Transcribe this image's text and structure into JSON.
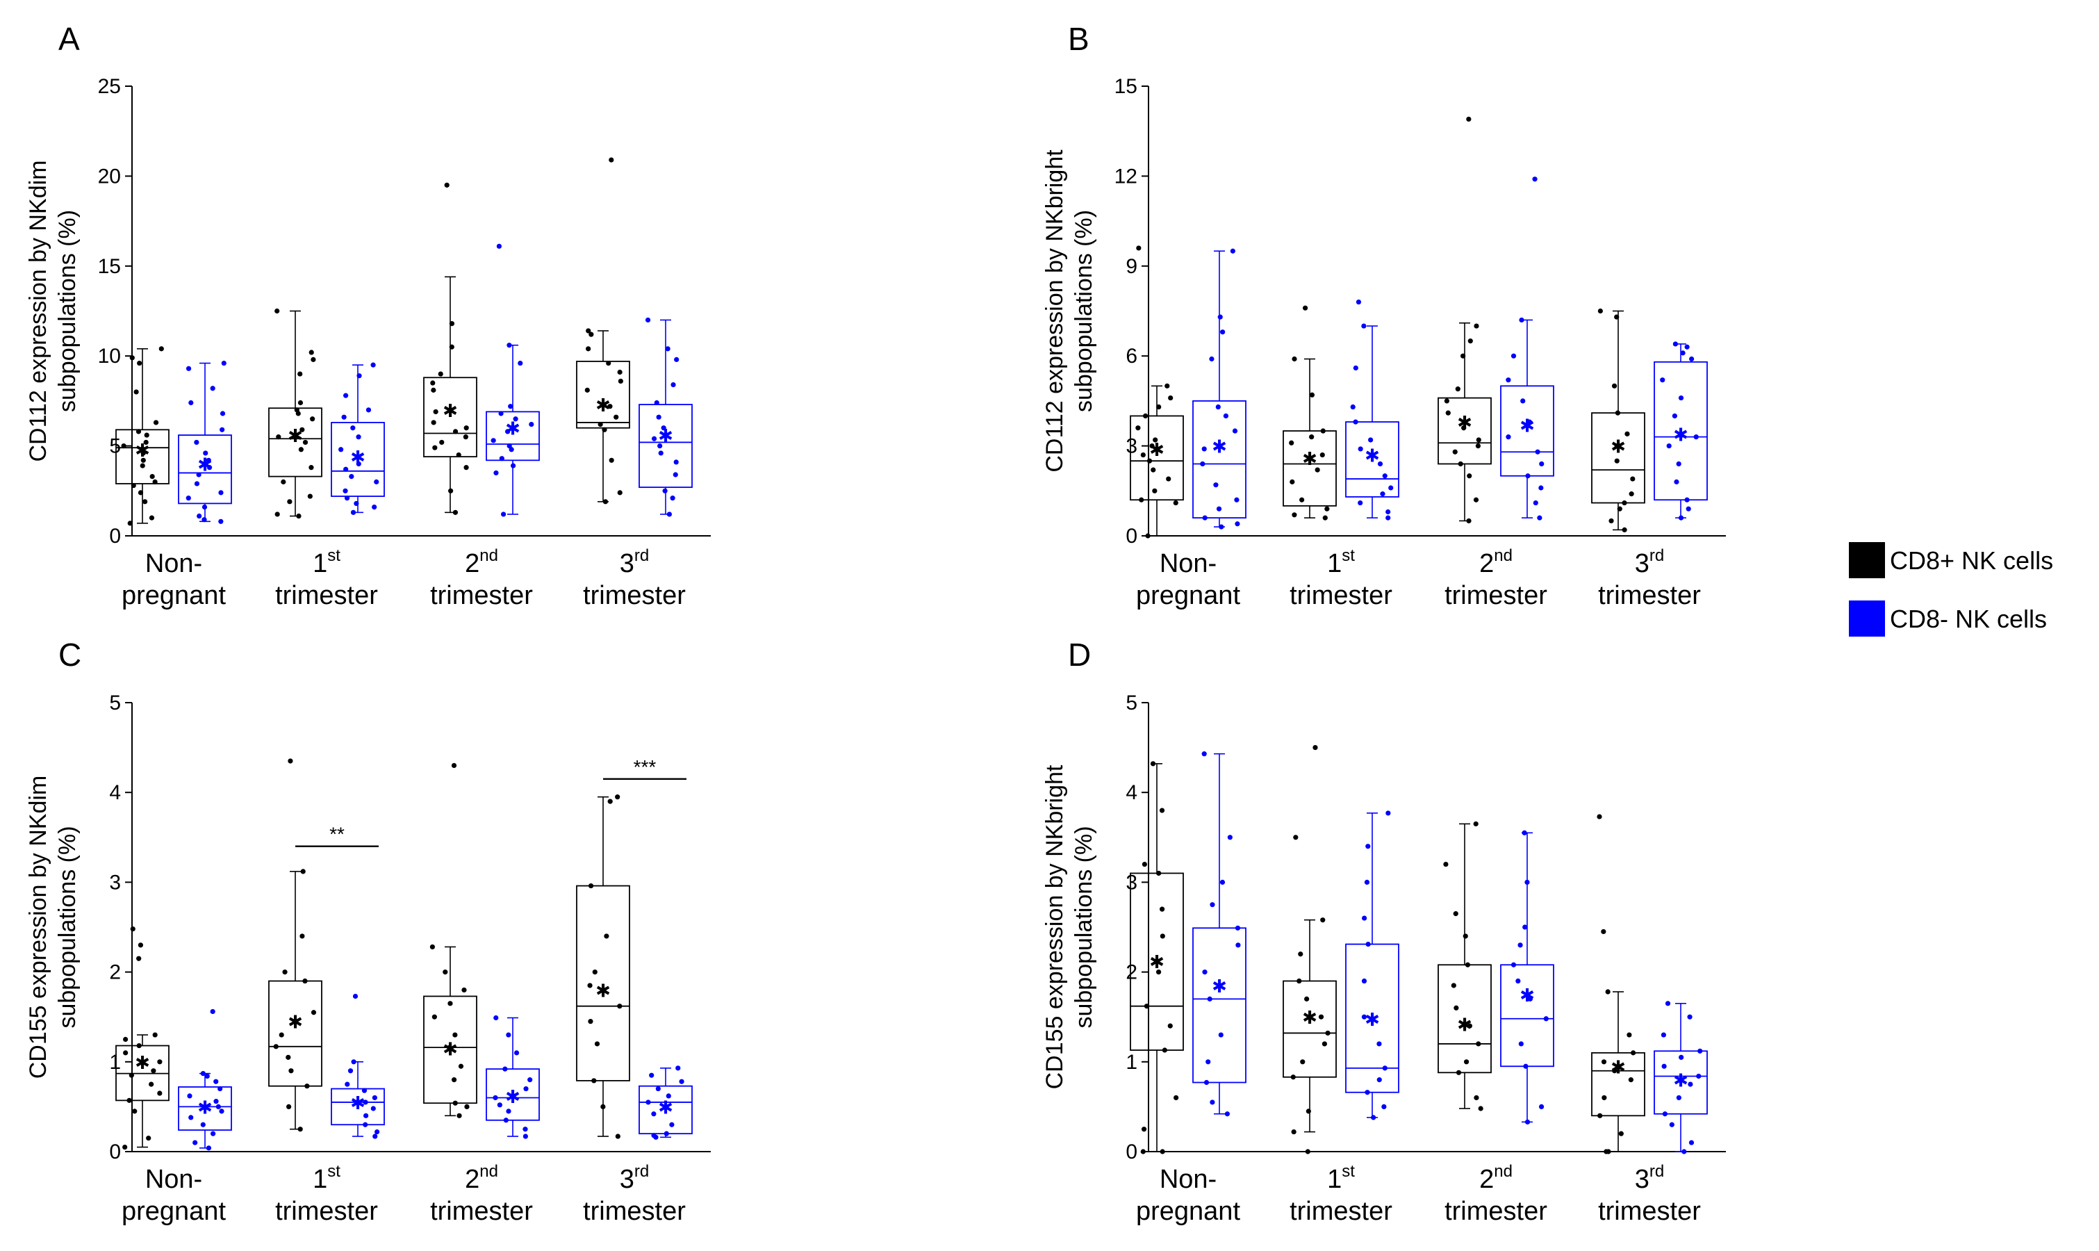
{
  "legend": {
    "items": [
      {
        "label": "CD8+ NK cells",
        "color": "#000000"
      },
      {
        "label": "CD8- NK cells",
        "color": "#0000ff"
      }
    ]
  },
  "categories": [
    {
      "line1": "Non-",
      "line2": "pregnant",
      "sup": ""
    },
    {
      "line1": "1",
      "line2": "trimester",
      "sup": "st"
    },
    {
      "line1": "2",
      "line2": "trimester",
      "sup": "nd"
    },
    {
      "line1": "3",
      "line2": "trimester",
      "sup": "rd"
    }
  ],
  "chart_data": [
    {
      "type": "box",
      "panel": "A",
      "ylabel_line1": "CD112 expression by NKdim",
      "ylabel_line2": "subpopulations (%)",
      "ylim": [
        0,
        25
      ],
      "yticks": [
        0,
        5,
        10,
        15,
        20,
        25
      ],
      "groups": [
        {
          "cd8pos": {
            "min": 0.7,
            "q1": 2.9,
            "median": 4.9,
            "q3": 5.9,
            "max": 10.4,
            "mean": 4.8,
            "points": [
              0.7,
              1.0,
              1.9,
              2.4,
              2.8,
              3.0,
              3.3,
              3.9,
              4.2,
              4.6,
              5.0,
              5.2,
              5.6,
              5.8,
              6.3,
              8.0,
              9.6,
              9.9,
              10.4
            ]
          },
          "cd8neg": {
            "min": 0.8,
            "q1": 1.8,
            "median": 3.5,
            "q3": 5.6,
            "max": 9.6,
            "mean": 4.0,
            "points": [
              0.8,
              0.9,
              1.1,
              1.6,
              2.1,
              2.4,
              2.9,
              3.4,
              3.8,
              4.2,
              4.6,
              5.2,
              5.9,
              6.8,
              7.4,
              8.2,
              9.3,
              9.6
            ]
          },
          "sig": ""
        },
        {
          "cd8pos": {
            "min": 1.1,
            "q1": 3.3,
            "median": 5.4,
            "q3": 7.1,
            "max": 12.5,
            "mean": 5.6,
            "points": [
              1.1,
              1.2,
              1.9,
              2.2,
              3.0,
              3.8,
              4.8,
              5.2,
              5.5,
              5.9,
              6.5,
              6.8,
              7.0,
              7.4,
              9.0,
              9.8,
              10.2,
              12.5
            ]
          },
          "cd8neg": {
            "min": 1.3,
            "q1": 2.2,
            "median": 3.6,
            "q3": 6.3,
            "max": 9.5,
            "mean": 4.4,
            "points": [
              1.3,
              1.6,
              1.8,
              2.1,
              2.5,
              3.0,
              3.3,
              3.7,
              4.0,
              4.8,
              5.5,
              6.0,
              6.6,
              7.0,
              7.8,
              8.9,
              9.5
            ]
          },
          "sig": ""
        },
        {
          "cd8pos": {
            "min": 1.3,
            "q1": 4.4,
            "median": 5.7,
            "q3": 8.8,
            "max": 14.4,
            "mean": 7.0,
            "points": [
              1.3,
              2.5,
              3.8,
              4.5,
              4.9,
              5.2,
              5.5,
              5.8,
              6.0,
              6.3,
              6.9,
              8.1,
              8.5,
              9.0,
              10.5,
              11.8,
              19.5
            ]
          },
          "cd8neg": {
            "min": 1.2,
            "q1": 4.2,
            "median": 5.1,
            "q3": 6.9,
            "max": 10.6,
            "mean": 6.0,
            "points": [
              1.2,
              3.5,
              3.9,
              4.3,
              4.8,
              5.0,
              5.3,
              5.8,
              6.2,
              6.5,
              6.8,
              7.2,
              9.6,
              10.6,
              16.1
            ]
          },
          "sig": ""
        },
        {
          "cd8pos": {
            "min": 1.9,
            "q1": 6.0,
            "median": 6.3,
            "q3": 9.7,
            "max": 11.4,
            "mean": 7.3,
            "points": [
              1.9,
              2.4,
              4.2,
              5.9,
              6.2,
              6.6,
              7.2,
              8.1,
              8.6,
              9.1,
              9.6,
              10.4,
              11.2,
              11.4,
              20.9
            ]
          },
          "cd8neg": {
            "min": 1.2,
            "q1": 2.7,
            "median": 5.2,
            "q3": 7.3,
            "max": 12.0,
            "mean": 5.6,
            "points": [
              1.2,
              2.1,
              2.5,
              3.4,
              4.1,
              4.6,
              5.0,
              5.4,
              6.0,
              6.6,
              7.4,
              8.4,
              9.8,
              10.4,
              12.0
            ]
          },
          "sig": ""
        }
      ]
    },
    {
      "type": "box",
      "panel": "B",
      "ylabel_line1": "CD112 expression by NKbright",
      "ylabel_line2": "subpopulations (%)",
      "ylim": [
        0,
        15
      ],
      "yticks": [
        0,
        3,
        6,
        9,
        12,
        15
      ],
      "groups": [
        {
          "cd8pos": {
            "min": 0.0,
            "q1": 1.2,
            "median": 2.5,
            "q3": 4.0,
            "max": 5.0,
            "mean": 2.9,
            "points": [
              0.0,
              1.1,
              1.2,
              1.5,
              1.9,
              2.2,
              2.5,
              2.7,
              3.0,
              3.2,
              3.6,
              4.0,
              4.3,
              4.6,
              5.0,
              9.6
            ]
          },
          "cd8neg": {
            "min": 0.3,
            "q1": 0.6,
            "median": 2.4,
            "q3": 4.5,
            "max": 9.5,
            "mean": 3.0,
            "points": [
              0.3,
              0.4,
              0.6,
              0.9,
              1.2,
              1.7,
              2.4,
              2.9,
              3.5,
              4.0,
              4.3,
              5.9,
              6.8,
              7.3,
              9.5
            ]
          },
          "sig": ""
        },
        {
          "cd8pos": {
            "min": 0.6,
            "q1": 1.0,
            "median": 2.4,
            "q3": 3.5,
            "max": 5.9,
            "mean": 2.6,
            "points": [
              0.6,
              0.7,
              0.9,
              1.2,
              1.8,
              2.2,
              2.7,
              3.1,
              3.3,
              3.5,
              4.7,
              5.9,
              7.6
            ]
          },
          "cd8neg": {
            "min": 0.6,
            "q1": 1.3,
            "median": 1.9,
            "q3": 3.8,
            "max": 7.0,
            "mean": 2.7,
            "points": [
              0.6,
              0.8,
              1.1,
              1.4,
              1.6,
              2.0,
              2.4,
              2.9,
              3.2,
              3.8,
              4.3,
              5.6,
              7.0,
              7.8
            ]
          },
          "sig": ""
        },
        {
          "cd8pos": {
            "min": 0.5,
            "q1": 2.4,
            "median": 3.1,
            "q3": 4.6,
            "max": 7.1,
            "mean": 3.8,
            "points": [
              0.5,
              1.2,
              2.0,
              2.4,
              2.8,
              3.0,
              3.2,
              3.6,
              4.1,
              4.5,
              4.9,
              6.0,
              6.5,
              7.0,
              13.9
            ]
          },
          "cd8neg": {
            "min": 0.6,
            "q1": 2.0,
            "median": 2.8,
            "q3": 5.0,
            "max": 7.2,
            "mean": 3.7,
            "points": [
              0.6,
              1.1,
              1.6,
              2.0,
              2.4,
              2.8,
              3.3,
              3.8,
              4.5,
              5.2,
              6.0,
              7.2,
              11.9
            ]
          },
          "sig": ""
        },
        {
          "cd8pos": {
            "min": 0.2,
            "q1": 1.1,
            "median": 2.2,
            "q3": 4.1,
            "max": 7.5,
            "mean": 3.0,
            "points": [
              0.2,
              0.5,
              0.9,
              1.1,
              1.4,
              1.9,
              2.5,
              3.0,
              3.4,
              4.1,
              5.0,
              7.3,
              7.5
            ]
          },
          "cd8neg": {
            "min": 0.6,
            "q1": 1.2,
            "median": 3.3,
            "q3": 5.8,
            "max": 6.4,
            "mean": 3.4,
            "points": [
              0.6,
              0.9,
              1.2,
              1.8,
              2.4,
              3.0,
              3.3,
              4.0,
              4.6,
              5.2,
              5.9,
              6.1,
              6.3,
              6.4
            ]
          },
          "sig": ""
        }
      ]
    },
    {
      "type": "box",
      "panel": "C",
      "ylabel_line1": "CD155 expression by NKdim",
      "ylabel_line2": "subpopulations (%)",
      "ylim": [
        0,
        5
      ],
      "yticks": [
        0,
        1,
        2,
        3,
        4,
        5
      ],
      "groups": [
        {
          "cd8pos": {
            "min": 0.05,
            "q1": 0.57,
            "median": 0.87,
            "q3": 1.18,
            "max": 1.3,
            "mean": 1.0,
            "points": [
              0.05,
              0.15,
              0.45,
              0.57,
              0.65,
              0.75,
              0.85,
              0.9,
              1.0,
              1.1,
              1.18,
              1.25,
              1.3,
              2.15,
              2.3,
              2.48
            ]
          },
          "cd8neg": {
            "min": 0.04,
            "q1": 0.24,
            "median": 0.5,
            "q3": 0.72,
            "max": 0.87,
            "mean": 0.5,
            "points": [
              0.04,
              0.1,
              0.2,
              0.3,
              0.38,
              0.45,
              0.5,
              0.56,
              0.62,
              0.7,
              0.78,
              0.84,
              0.87,
              1.56
            ]
          },
          "sig": ""
        },
        {
          "cd8pos": {
            "min": 0.25,
            "q1": 0.73,
            "median": 1.17,
            "q3": 1.9,
            "max": 3.12,
            "mean": 1.45,
            "points": [
              0.25,
              0.5,
              0.73,
              0.9,
              1.05,
              1.17,
              1.3,
              1.55,
              1.9,
              2.0,
              2.4,
              3.12,
              4.35
            ]
          },
          "cd8neg": {
            "min": 0.17,
            "q1": 0.3,
            "median": 0.55,
            "q3": 0.7,
            "max": 1.0,
            "mean": 0.55,
            "points": [
              0.17,
              0.22,
              0.3,
              0.4,
              0.48,
              0.55,
              0.6,
              0.68,
              0.75,
              0.9,
              1.0,
              1.73
            ]
          },
          "sig": "**"
        },
        {
          "cd8pos": {
            "min": 0.4,
            "q1": 0.54,
            "median": 1.16,
            "q3": 1.73,
            "max": 2.28,
            "mean": 1.15,
            "points": [
              0.4,
              0.5,
              0.54,
              0.8,
              0.95,
              1.16,
              1.3,
              1.5,
              1.65,
              1.8,
              2.0,
              2.28,
              4.3
            ]
          },
          "cd8neg": {
            "min": 0.17,
            "q1": 0.35,
            "median": 0.6,
            "q3": 0.92,
            "max": 1.49,
            "mean": 0.62,
            "points": [
              0.17,
              0.25,
              0.35,
              0.45,
              0.52,
              0.6,
              0.7,
              0.8,
              0.92,
              1.1,
              1.3,
              1.49
            ]
          },
          "sig": ""
        },
        {
          "cd8pos": {
            "min": 0.17,
            "q1": 0.79,
            "median": 1.62,
            "q3": 2.96,
            "max": 3.95,
            "mean": 1.8,
            "points": [
              0.17,
              0.5,
              0.79,
              1.2,
              1.45,
              1.62,
              1.85,
              2.0,
              2.4,
              2.96,
              3.9,
              3.95
            ]
          },
          "cd8neg": {
            "min": 0.16,
            "q1": 0.2,
            "median": 0.55,
            "q3": 0.73,
            "max": 0.93,
            "mean": 0.5,
            "points": [
              0.16,
              0.18,
              0.2,
              0.3,
              0.42,
              0.55,
              0.62,
              0.7,
              0.78,
              0.85,
              0.93
            ]
          },
          "sig": "***"
        }
      ]
    },
    {
      "type": "box",
      "panel": "D",
      "ylabel_line1": "CD155 expression by NKbright",
      "ylabel_line2": "subpopulations (%)",
      "ylim": [
        0,
        5
      ],
      "yticks": [
        0,
        1,
        2,
        3,
        4,
        5
      ],
      "groups": [
        {
          "cd8pos": {
            "min": 0.0,
            "q1": 1.13,
            "median": 1.62,
            "q3": 3.1,
            "max": 4.32,
            "mean": 2.12,
            "points": [
              0.0,
              0.0,
              0.25,
              0.6,
              1.13,
              1.4,
              1.62,
              2.0,
              2.4,
              2.7,
              3.1,
              3.2,
              3.8,
              4.32
            ]
          },
          "cd8neg": {
            "min": 0.42,
            "q1": 0.77,
            "median": 1.7,
            "q3": 2.49,
            "max": 4.43,
            "mean": 1.85,
            "points": [
              0.42,
              0.55,
              0.77,
              1.0,
              1.3,
              1.7,
              2.0,
              2.3,
              2.49,
              2.75,
              3.0,
              3.5,
              4.43
            ]
          },
          "sig": ""
        },
        {
          "cd8pos": {
            "min": 0.22,
            "q1": 0.83,
            "median": 1.32,
            "q3": 1.9,
            "max": 2.58,
            "mean": 1.5,
            "points": [
              0.0,
              0.22,
              0.45,
              0.83,
              1.0,
              1.2,
              1.32,
              1.5,
              1.7,
              1.9,
              2.2,
              2.58,
              3.5,
              4.5
            ]
          },
          "cd8neg": {
            "min": 0.38,
            "q1": 0.66,
            "median": 0.93,
            "q3": 2.31,
            "max": 3.77,
            "mean": 1.48,
            "points": [
              0.38,
              0.5,
              0.66,
              0.8,
              0.93,
              1.2,
              1.5,
              1.9,
              2.31,
              2.6,
              3.0,
              3.4,
              3.77
            ]
          },
          "sig": ""
        },
        {
          "cd8pos": {
            "min": 0.48,
            "q1": 0.88,
            "median": 1.2,
            "q3": 2.08,
            "max": 3.65,
            "mean": 1.42,
            "points": [
              0.48,
              0.6,
              0.88,
              1.0,
              1.2,
              1.4,
              1.6,
              1.85,
              2.08,
              2.4,
              2.65,
              3.2,
              3.65
            ]
          },
          "cd8neg": {
            "min": 0.33,
            "q1": 0.95,
            "median": 1.48,
            "q3": 2.08,
            "max": 3.55,
            "mean": 1.75,
            "points": [
              0.33,
              0.5,
              0.95,
              1.2,
              1.48,
              1.7,
              1.9,
              2.08,
              2.3,
              2.5,
              3.0,
              3.55
            ]
          },
          "sig": ""
        },
        {
          "cd8pos": {
            "min": 0.0,
            "q1": 0.4,
            "median": 0.9,
            "q3": 1.1,
            "max": 1.78,
            "mean": 0.95,
            "points": [
              0.0,
              0.0,
              0.2,
              0.4,
              0.6,
              0.8,
              0.9,
              1.0,
              1.1,
              1.3,
              1.78,
              2.45,
              3.73
            ]
          },
          "cd8neg": {
            "min": 0.0,
            "q1": 0.42,
            "median": 0.84,
            "q3": 1.12,
            "max": 1.65,
            "mean": 0.8,
            "points": [
              0.0,
              0.1,
              0.3,
              0.42,
              0.6,
              0.75,
              0.84,
              0.95,
              1.05,
              1.12,
              1.3,
              1.5,
              1.65
            ]
          },
          "sig": ""
        }
      ]
    }
  ]
}
